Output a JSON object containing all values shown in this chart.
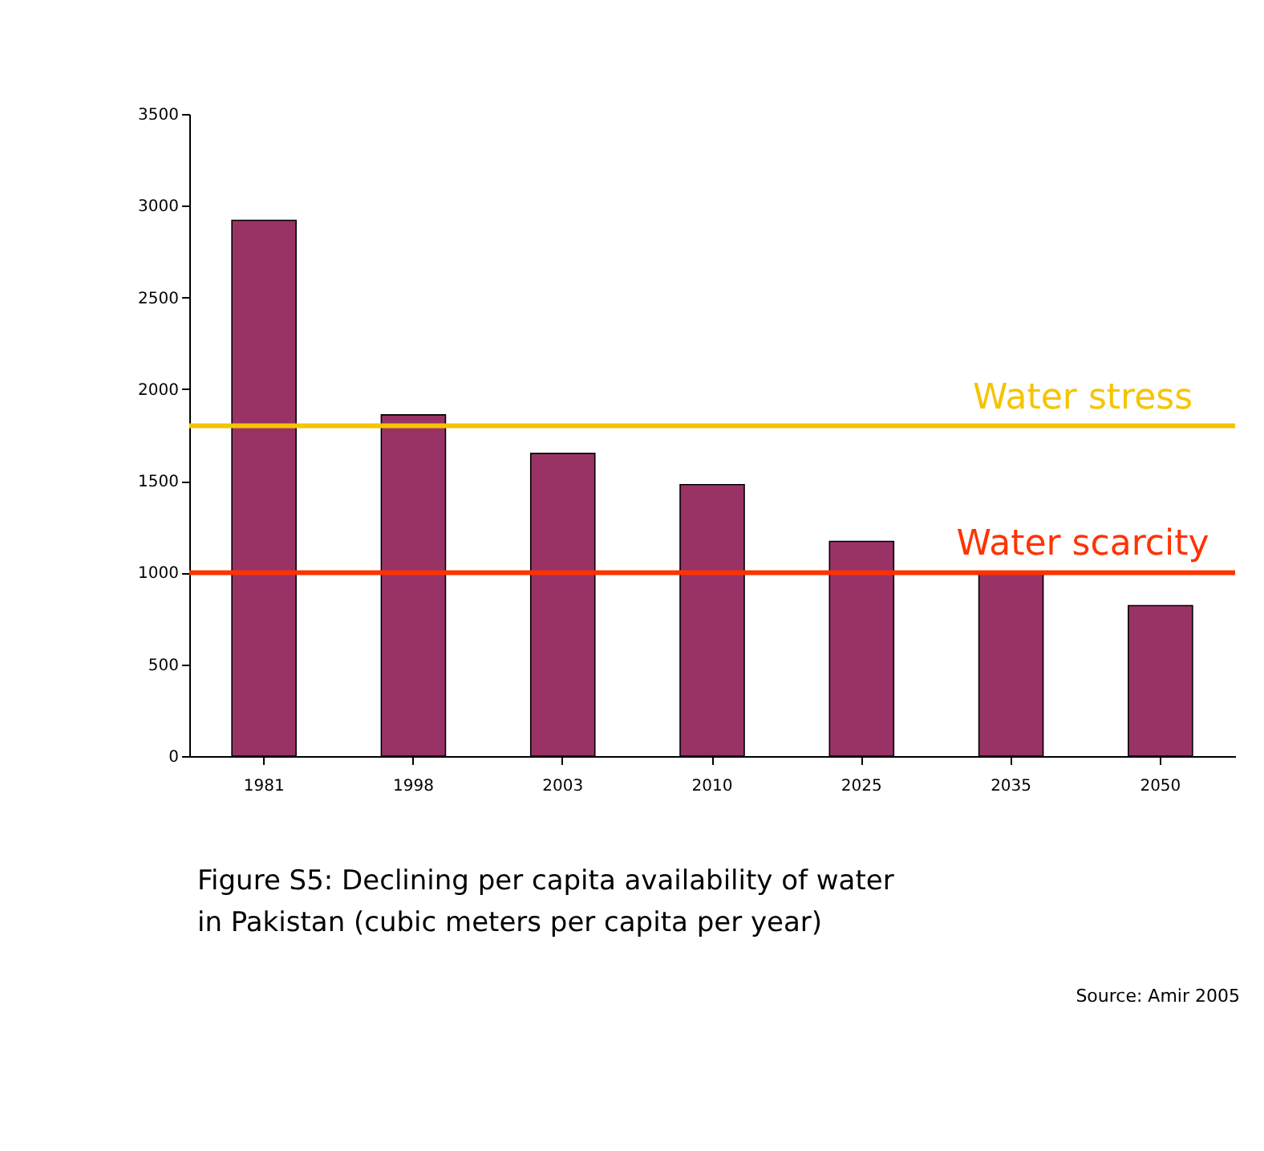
{
  "chart_data": {
    "type": "bar",
    "categories": [
      "1981",
      "1998",
      "2003",
      "2010",
      "2025",
      "2035",
      "2050"
    ],
    "values": [
      2920,
      1860,
      1650,
      1480,
      1170,
      1000,
      820
    ],
    "color": "#993366",
    "ylim": [
      0,
      3500
    ],
    "yticks": [
      0,
      500,
      1000,
      1500,
      2000,
      2500,
      3000,
      3500
    ],
    "grid": false,
    "ref_lines": [
      {
        "axis": "y",
        "value": 1800,
        "label": "Water stress",
        "color": "#f5c400"
      },
      {
        "axis": "y",
        "value": 1000,
        "label": "Water scarcity",
        "color": "#ff3300"
      }
    ],
    "annotations": [
      "Figure S5: Declining per capita availability of water\nin Pakistan (cubic meters per capita per year)",
      "Source: Amir 2005"
    ]
  }
}
